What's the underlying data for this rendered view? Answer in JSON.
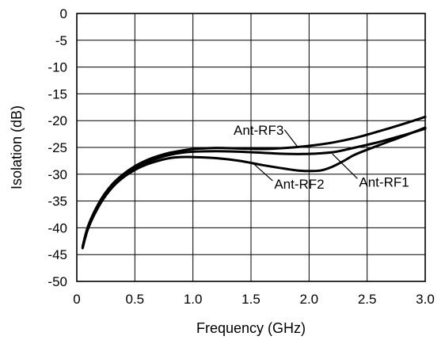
{
  "chart_data": {
    "type": "line",
    "xlabel": "Frequency (GHz)",
    "ylabel": "Isolation (dB)",
    "xlim": [
      0,
      3.0
    ],
    "ylim": [
      -50,
      0
    ],
    "x_ticks": [
      "0",
      "0.5",
      "1.0",
      "1.5",
      "2.0",
      "2.5",
      "3.0"
    ],
    "y_ticks": [
      "0",
      "-5",
      "-10",
      "-15",
      "-20",
      "-25",
      "-30",
      "-35",
      "-40",
      "-45",
      "-50"
    ],
    "grid": true,
    "series": [
      {
        "name": "Ant-RF3",
        "x": [
          0.05,
          0.1,
          0.2,
          0.3,
          0.4,
          0.5,
          0.6,
          0.7,
          0.8,
          0.9,
          1.0,
          1.2,
          1.4,
          1.6,
          1.8,
          2.0,
          2.2,
          2.4,
          2.6,
          2.8,
          3.0
        ],
        "y": [
          -43.5,
          -39.5,
          -35.0,
          -32.0,
          -30.0,
          -28.5,
          -27.4,
          -26.6,
          -26.0,
          -25.6,
          -25.3,
          -25.1,
          -25.2,
          -25.3,
          -25.1,
          -24.7,
          -24.1,
          -23.2,
          -22.0,
          -20.7,
          -19.3
        ]
      },
      {
        "name": "Ant-RF1",
        "x": [
          0.05,
          0.1,
          0.2,
          0.3,
          0.4,
          0.5,
          0.6,
          0.7,
          0.8,
          0.9,
          1.0,
          1.2,
          1.4,
          1.6,
          1.8,
          2.0,
          2.2,
          2.3,
          2.4,
          2.6,
          2.8,
          3.0
        ],
        "y": [
          -43.7,
          -39.7,
          -35.3,
          -32.3,
          -30.3,
          -28.8,
          -27.8,
          -27.0,
          -26.4,
          -26.0,
          -25.8,
          -25.7,
          -25.8,
          -26.0,
          -26.2,
          -26.2,
          -25.9,
          -25.5,
          -25.0,
          -24.0,
          -22.8,
          -21.5
        ]
      },
      {
        "name": "Ant-RF2",
        "x": [
          0.05,
          0.1,
          0.2,
          0.3,
          0.4,
          0.5,
          0.6,
          0.7,
          0.8,
          0.9,
          1.0,
          1.2,
          1.4,
          1.6,
          1.8,
          1.9,
          2.0,
          2.1,
          2.2,
          2.3,
          2.4,
          2.6,
          2.8,
          3.0
        ],
        "y": [
          -43.8,
          -40.0,
          -35.6,
          -32.6,
          -30.6,
          -29.2,
          -28.2,
          -27.5,
          -27.0,
          -26.8,
          -26.8,
          -27.0,
          -27.5,
          -28.3,
          -29.0,
          -29.3,
          -29.4,
          -29.3,
          -28.6,
          -27.5,
          -26.3,
          -24.6,
          -23.0,
          -21.3
        ]
      }
    ],
    "annotations": [
      {
        "series": "Ant-RF3",
        "text": "Ant-RF3",
        "text_x": 1.35,
        "text_y": -22.6,
        "point_x": 1.9,
        "point_y": -24.85
      },
      {
        "series": "Ant-RF2",
        "text": "Ant-RF2",
        "text_x": 1.7,
        "text_y": -32.7,
        "point_x": 1.52,
        "point_y": -28.0
      },
      {
        "series": "Ant-RF1",
        "text": "Ant-RF1",
        "text_x": 2.43,
        "text_y": -32.3,
        "point_x": 2.2,
        "point_y": -26.2
      }
    ]
  }
}
